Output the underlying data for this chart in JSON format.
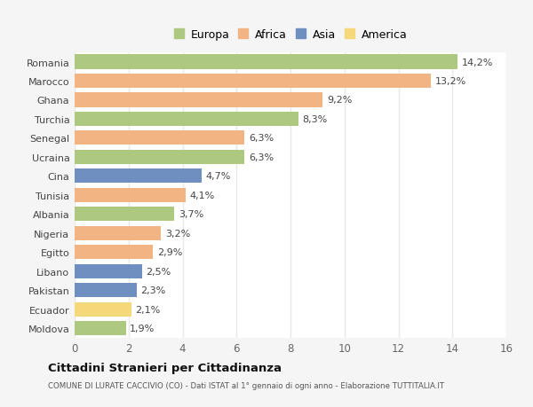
{
  "countries": [
    "Romania",
    "Marocco",
    "Ghana",
    "Turchia",
    "Senegal",
    "Ucraina",
    "Cina",
    "Tunisia",
    "Albania",
    "Nigeria",
    "Egitto",
    "Libano",
    "Pakistan",
    "Ecuador",
    "Moldova"
  ],
  "values": [
    14.2,
    13.2,
    9.2,
    8.3,
    6.3,
    6.3,
    4.7,
    4.1,
    3.7,
    3.2,
    2.9,
    2.5,
    2.3,
    2.1,
    1.9
  ],
  "labels": [
    "14,2%",
    "13,2%",
    "9,2%",
    "8,3%",
    "6,3%",
    "6,3%",
    "4,7%",
    "4,1%",
    "3,7%",
    "3,2%",
    "2,9%",
    "2,5%",
    "2,3%",
    "2,1%",
    "1,9%"
  ],
  "continents": [
    "Europa",
    "Africa",
    "Africa",
    "Europa",
    "Africa",
    "Europa",
    "Asia",
    "Africa",
    "Europa",
    "Africa",
    "Africa",
    "Asia",
    "Asia",
    "America",
    "Europa"
  ],
  "colors": {
    "Europa": "#adc97f",
    "Africa": "#f2b482",
    "Asia": "#6e8fbf",
    "America": "#f5d87a"
  },
  "legend_order": [
    "Europa",
    "Africa",
    "Asia",
    "America"
  ],
  "title": "Cittadini Stranieri per Cittadinanza",
  "subtitle": "COMUNE DI LURATE CACCIVIO (CO) - Dati ISTAT al 1° gennaio di ogni anno - Elaborazione TUTTITALIA.IT",
  "xlim": [
    0,
    16
  ],
  "xticks": [
    0,
    2,
    4,
    6,
    8,
    10,
    12,
    14,
    16
  ],
  "plot_bg": "#ffffff",
  "fig_bg": "#f5f5f5",
  "grid_color": "#e8e8e8",
  "bar_height": 0.75,
  "label_fontsize": 8.0,
  "ytick_fontsize": 8.0,
  "xtick_fontsize": 8.5
}
